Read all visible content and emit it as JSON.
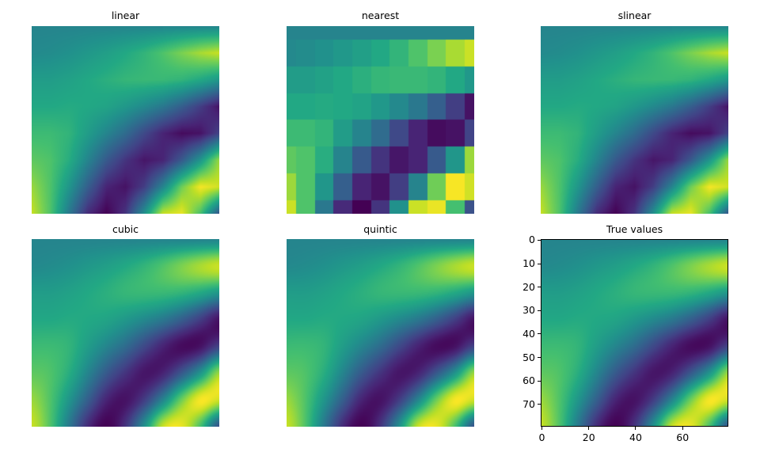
{
  "chart_data": {
    "type": "heatmap",
    "colormap": "viridis",
    "value_range": [
      0,
      1
    ],
    "sample_grid_note_free": true,
    "sample_grid": [
      [
        0.45,
        0.45,
        0.45,
        0.45,
        0.45,
        0.45,
        0.45,
        0.45,
        0.45,
        0.45,
        0.45
      ],
      [
        0.47,
        0.48,
        0.5,
        0.53,
        0.56,
        0.6,
        0.65,
        0.72,
        0.8,
        0.87,
        0.92
      ],
      [
        0.55,
        0.55,
        0.57,
        0.6,
        0.63,
        0.66,
        0.67,
        0.67,
        0.65,
        0.6,
        0.53
      ],
      [
        0.6,
        0.6,
        0.61,
        0.6,
        0.58,
        0.53,
        0.47,
        0.4,
        0.3,
        0.18,
        0.05
      ],
      [
        0.68,
        0.68,
        0.65,
        0.55,
        0.45,
        0.35,
        0.22,
        0.1,
        0.03,
        0.05,
        0.2
      ],
      [
        0.75,
        0.72,
        0.62,
        0.45,
        0.28,
        0.15,
        0.06,
        0.1,
        0.28,
        0.52,
        0.85
      ],
      [
        0.85,
        0.72,
        0.52,
        0.3,
        0.1,
        0.05,
        0.18,
        0.45,
        0.78,
        0.99,
        0.93
      ],
      [
        0.92,
        0.72,
        0.4,
        0.12,
        0.0,
        0.15,
        0.5,
        0.92,
        0.97,
        0.7,
        0.25
      ]
    ],
    "panels": [
      {
        "title": "linear",
        "method": "linear"
      },
      {
        "title": "nearest",
        "method": "nearest"
      },
      {
        "title": "slinear",
        "method": "linear"
      },
      {
        "title": "cubic",
        "method": "cubic"
      },
      {
        "title": "quintic",
        "method": "cubic"
      },
      {
        "title": "True values",
        "method": "cubic"
      }
    ],
    "true_values_axes": {
      "xlim": [
        0,
        79
      ],
      "ylim": [
        79,
        0
      ],
      "xticks": [
        "0",
        "20",
        "40",
        "60"
      ],
      "yticks": [
        "0",
        "10",
        "20",
        "30",
        "40",
        "50",
        "60",
        "70"
      ]
    }
  }
}
